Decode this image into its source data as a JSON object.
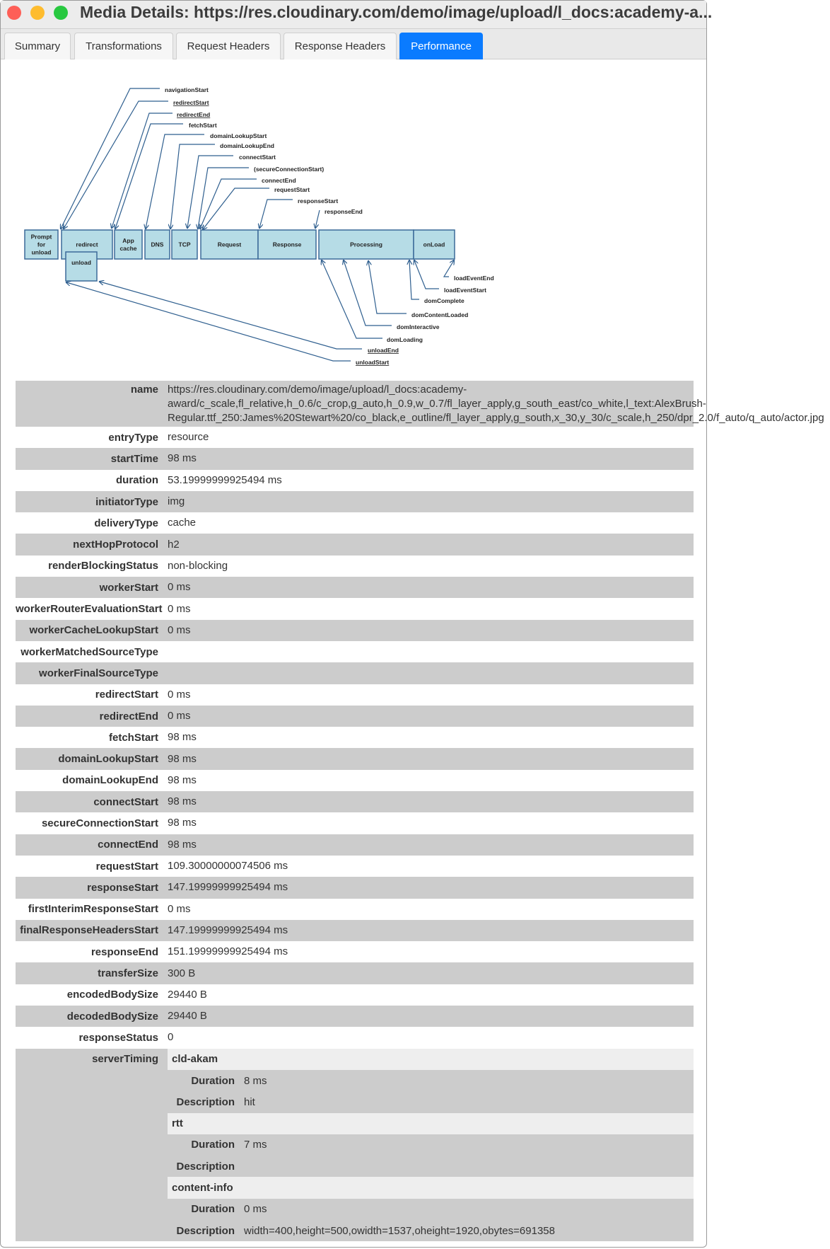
{
  "window": {
    "title": "Media Details: https://res.cloudinary.com/demo/image/upload/l_docs:academy-a...",
    "colors": {
      "close": "#fe5f57",
      "minimize": "#febc2e",
      "zoom": "#28c840",
      "accent": "#0a7bff"
    }
  },
  "tabs": [
    {
      "label": "Summary"
    },
    {
      "label": "Transformations"
    },
    {
      "label": "Request Headers"
    },
    {
      "label": "Response Headers"
    },
    {
      "label": "Performance",
      "active": true
    }
  ],
  "diagram": {
    "boxes": [
      "Prompt for unload",
      "redirect",
      "App cache",
      "DNS",
      "TCP",
      "Request",
      "Response",
      "Processing",
      "onLoad",
      "unload"
    ],
    "labels": [
      "navigationStart",
      "redirectStart",
      "redirectEnd",
      "fetchStart",
      "domainLookupStart",
      "domainLookupEnd",
      "connectStart",
      "(secureConnectionStart)",
      "connectEnd",
      "requestStart",
      "responseStart",
      "responseEnd",
      "loadEventEnd",
      "loadEventStart",
      "domComplete",
      "domContentLoaded",
      "domInteractive",
      "domLoading",
      "unloadEnd",
      "unloadStart"
    ]
  },
  "details": {
    "name": {
      "key": "name",
      "value": "https://res.cloudinary.com/demo/image/upload/l_docs:academy-award/c_scale,fl_relative,h_0.6/c_crop,g_auto,h_0.9,w_0.7/fl_layer_apply,g_south_east/co_white,l_text:AlexBrush-Regular.ttf_250:James%20Stewart%20/co_black,e_outline/fl_layer_apply,g_south,x_30,y_30/c_scale,h_250/dpr_2.0/f_auto/q_auto/actor.jpg"
    },
    "rows": [
      {
        "key": "entryType",
        "value": "resource"
      },
      {
        "key": "startTime",
        "value": "98 ms"
      },
      {
        "key": "duration",
        "value": "53.19999999925494 ms"
      },
      {
        "key": "initiatorType",
        "value": "img"
      },
      {
        "key": "deliveryType",
        "value": "cache"
      },
      {
        "key": "nextHopProtocol",
        "value": "h2"
      },
      {
        "key": "renderBlockingStatus",
        "value": "non-blocking"
      },
      {
        "key": "workerStart",
        "value": "0 ms"
      },
      {
        "key": "workerRouterEvaluationStart",
        "value": "0 ms"
      },
      {
        "key": "workerCacheLookupStart",
        "value": "0 ms"
      },
      {
        "key": "workerMatchedSourceType",
        "value": ""
      },
      {
        "key": "workerFinalSourceType",
        "value": ""
      },
      {
        "key": "redirectStart",
        "value": "0 ms"
      },
      {
        "key": "redirectEnd",
        "value": "0 ms"
      },
      {
        "key": "fetchStart",
        "value": "98 ms"
      },
      {
        "key": "domainLookupStart",
        "value": "98 ms"
      },
      {
        "key": "domainLookupEnd",
        "value": "98 ms"
      },
      {
        "key": "connectStart",
        "value": "98 ms"
      },
      {
        "key": "secureConnectionStart",
        "value": "98 ms"
      },
      {
        "key": "connectEnd",
        "value": "98 ms"
      },
      {
        "key": "requestStart",
        "value": "109.30000000074506 ms"
      },
      {
        "key": "responseStart",
        "value": "147.19999999925494 ms"
      },
      {
        "key": "firstInterimResponseStart",
        "value": "0 ms"
      },
      {
        "key": "finalResponseHeadersStart",
        "value": "147.19999999925494 ms"
      },
      {
        "key": "responseEnd",
        "value": "151.19999999925494 ms"
      },
      {
        "key": "transferSize",
        "value": "300 B"
      },
      {
        "key": "encodedBodySize",
        "value": "29440 B"
      },
      {
        "key": "decodedBodySize",
        "value": "29440 B"
      },
      {
        "key": "responseStatus",
        "value": "0"
      }
    ],
    "serverTiming": {
      "key": "serverTiming",
      "duration_label": "Duration",
      "description_label": "Description",
      "entries": [
        {
          "name": "cld-akam",
          "duration": "8 ms",
          "description": "hit"
        },
        {
          "name": "rtt",
          "duration": "7 ms",
          "description": ""
        },
        {
          "name": "content-info",
          "duration": "0 ms",
          "description": "width=400,height=500,owidth=1537,oheight=1920,obytes=691358"
        }
      ]
    }
  }
}
